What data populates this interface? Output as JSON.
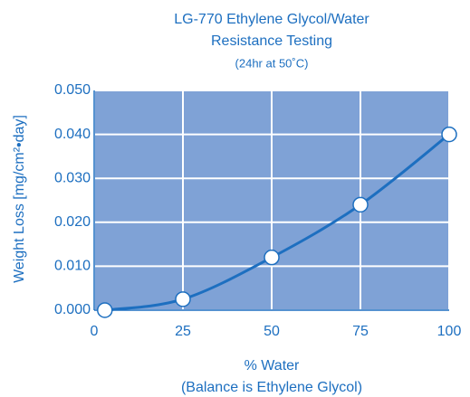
{
  "chart_data": {
    "type": "line",
    "title": [
      "LG-770 Ethylene Glycol/Water",
      "Resistance Testing",
      "(24hr at 50˚C)"
    ],
    "x_label": [
      "% Water",
      "(Balance is Ethylene Glycol)"
    ],
    "y_label": "Weight Loss [mg/cm²•day]",
    "x": [
      3,
      25,
      50,
      75,
      100
    ],
    "series": [
      {
        "color": "#1d6fc0",
        "values": [
          0.0,
          0.0025,
          0.012,
          0.024,
          0.04
        ]
      }
    ],
    "xlim": [
      0,
      100
    ],
    "xticks": [
      0,
      25,
      50,
      75,
      100
    ],
    "ylim": [
      0,
      0.05
    ],
    "yticks": [
      {
        "value": 0,
        "label": "0.000"
      },
      {
        "value": 0.01,
        "label": "0.010"
      },
      {
        "value": 0.02,
        "label": "0.020"
      },
      {
        "value": 0.03,
        "label": "0.030"
      },
      {
        "value": 0.04,
        "label": "0.040"
      },
      {
        "value": 0.05,
        "label": "0.050"
      }
    ],
    "grid": true,
    "plot_color": "#7fa2d6"
  }
}
